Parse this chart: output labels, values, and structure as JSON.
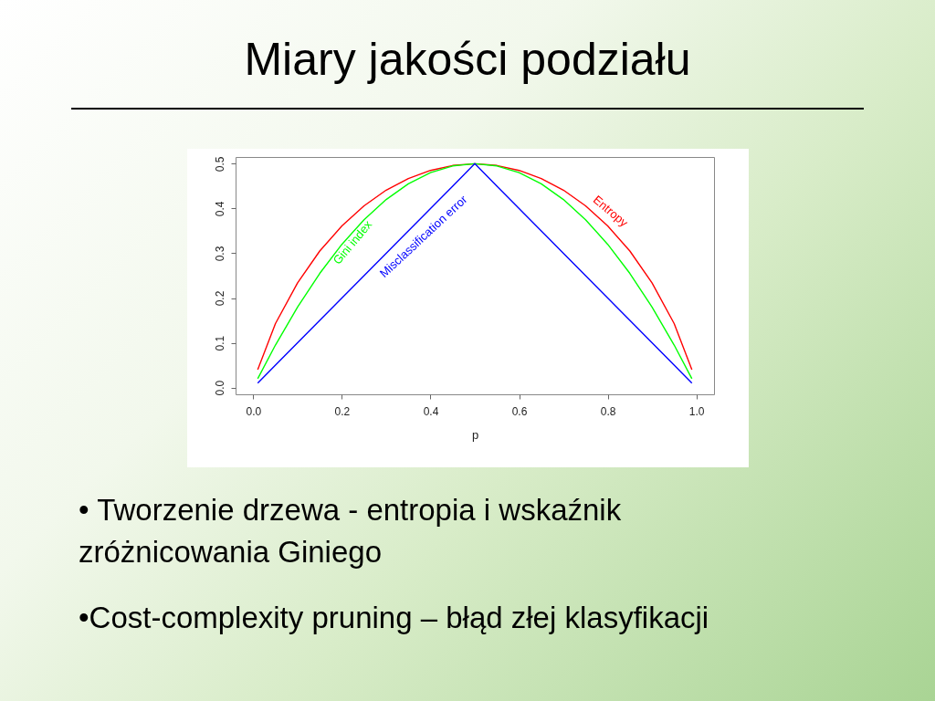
{
  "chart_data": {
    "type": "line",
    "title": "Miary jakości podziału",
    "annotations": [
      "• Tworzenie drzewa - entropia i wskaźnik zróżnicowania Giniego",
      "•Cost-complexity pruning – błąd złej klasyfikacji"
    ],
    "xlabel": "p",
    "x": [
      0.01,
      0.05,
      0.1,
      0.15,
      0.2,
      0.25,
      0.3,
      0.35,
      0.4,
      0.45,
      0.5,
      0.55,
      0.6,
      0.65,
      0.7,
      0.75,
      0.8,
      0.85,
      0.9,
      0.95,
      0.99
    ],
    "series": [
      {
        "name": "Entropy",
        "color": "#ff0000",
        "values": [
          0.04,
          0.143,
          0.234,
          0.305,
          0.361,
          0.406,
          0.441,
          0.467,
          0.485,
          0.496,
          0.5,
          0.496,
          0.485,
          0.467,
          0.441,
          0.406,
          0.361,
          0.305,
          0.234,
          0.143,
          0.04
        ]
      },
      {
        "name": "Gini index",
        "color": "#00ff00",
        "values": [
          0.02,
          0.095,
          0.18,
          0.255,
          0.32,
          0.375,
          0.42,
          0.455,
          0.48,
          0.495,
          0.5,
          0.495,
          0.48,
          0.455,
          0.42,
          0.375,
          0.32,
          0.255,
          0.18,
          0.095,
          0.02
        ]
      },
      {
        "name": "Misclassification error",
        "color": "#0000ff",
        "values": [
          0.01,
          0.05,
          0.1,
          0.15,
          0.2,
          0.25,
          0.3,
          0.35,
          0.4,
          0.45,
          0.5,
          0.45,
          0.4,
          0.35,
          0.3,
          0.25,
          0.2,
          0.15,
          0.1,
          0.05,
          0.01
        ]
      }
    ],
    "xlim": [
      -0.04,
      1.04
    ],
    "ylim": [
      -0.015,
      0.515
    ],
    "xticks": [
      {
        "value": 0,
        "label": "0.0"
      },
      {
        "value": 0.2,
        "label": "0.2"
      },
      {
        "value": 0.4,
        "label": "0.4"
      },
      {
        "value": 0.6,
        "label": "0.6"
      },
      {
        "value": 0.8,
        "label": "0.8"
      },
      {
        "value": 1,
        "label": "1.0"
      }
    ],
    "yticks": [
      {
        "value": 0,
        "label": "0.0"
      },
      {
        "value": 0.1,
        "label": "0.1"
      },
      {
        "value": 0.2,
        "label": "0.2"
      },
      {
        "value": 0.3,
        "label": "0.3"
      },
      {
        "value": 0.4,
        "label": "0.4"
      },
      {
        "value": 0.5,
        "label": "0.5"
      }
    ],
    "line_style": "solid"
  }
}
